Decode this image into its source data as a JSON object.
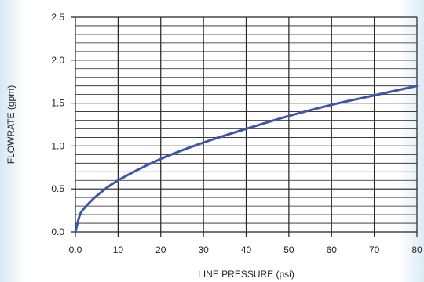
{
  "chart_data": {
    "type": "line",
    "title": "",
    "xlabel": "LINE PRESSURE (psi)",
    "ylabel": "FLOWRATE (gpm)",
    "xlim": [
      0,
      80
    ],
    "ylim": [
      0,
      2.5
    ],
    "xticks": [
      0,
      10,
      20,
      30,
      40,
      50,
      60,
      70,
      80
    ],
    "xtick_labels": [
      "0.0",
      "10",
      "20",
      "30",
      "40",
      "50",
      "60",
      "70",
      "80"
    ],
    "yticks": [
      0,
      0.5,
      1.0,
      1.5,
      2.0,
      2.5
    ],
    "ytick_labels": [
      "0.0",
      "0.5",
      "1.0",
      "1.5",
      "2.0",
      "2.5"
    ],
    "grid": true,
    "colors": {
      "line": "#3f55a8",
      "grid": "#222222"
    },
    "series": [
      {
        "x": [
          0,
          1,
          2,
          5,
          10,
          20,
          30,
          40,
          50,
          60,
          70,
          80
        ],
        "y": [
          0,
          0.19,
          0.27,
          0.42,
          0.6,
          0.85,
          1.04,
          1.2,
          1.35,
          1.48,
          1.59,
          1.7
        ]
      }
    ]
  }
}
